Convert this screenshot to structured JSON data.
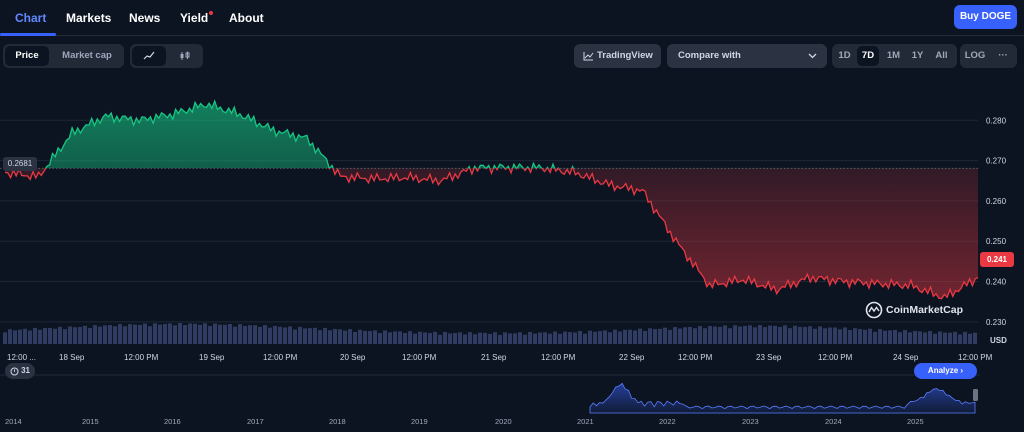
{
  "nav": {
    "tabs": [
      {
        "label": "Chart",
        "active": true
      },
      {
        "label": "Markets",
        "active": false
      },
      {
        "label": "News",
        "active": false
      },
      {
        "label": "Yield",
        "active": false
      },
      {
        "label": "About",
        "active": false
      }
    ],
    "buy_label": "Buy DOGE"
  },
  "toolbar": {
    "metric_tabs": [
      "Price",
      "Market cap"
    ],
    "metric_active": "Price",
    "chart_types": [
      "line-chart-icon",
      "candlestick-icon"
    ],
    "tradingview_label": "TradingView",
    "compare_placeholder": "Compare with",
    "ranges": [
      "1D",
      "7D",
      "1M",
      "1Y",
      "All",
      "LOG"
    ],
    "range_active": "7D",
    "more_label": "···"
  },
  "chart": {
    "reference_price": "0.2681",
    "current_price": "0.241",
    "currency_label": "USD",
    "watermark": "CoinMarketCap",
    "y_ticks": [
      "0.280",
      "0.270",
      "0.260",
      "0.250",
      "0.240",
      "0.230"
    ],
    "x_ticks": [
      "12:00 ...",
      "18 Sep",
      "12:00 PM",
      "19 Sep",
      "12:00 PM",
      "20 Sep",
      "12:00 PM",
      "21 Sep",
      "12:00 PM",
      "22 Sep",
      "12:00 PM",
      "23 Sep",
      "12:00 PM",
      "24 Sep",
      "12:00 PM"
    ],
    "range_years": [
      "2014",
      "2015",
      "2016",
      "2017",
      "2018",
      "2019",
      "2020",
      "2021",
      "2022",
      "2023",
      "2024",
      "2025"
    ],
    "badge_value": "31",
    "analyze_label": "Analyze",
    "colors": {
      "up": "#16c784",
      "down": "#ea3943",
      "accent": "#3861fb",
      "volume": "#3e4a7a"
    }
  },
  "chart_data": {
    "type": "line",
    "title": "",
    "xlabel": "",
    "ylabel": "USD",
    "ylim": [
      0.226,
      0.289
    ],
    "baseline": 0.2681,
    "x": [
      "17 Sep 09:00",
      "17 Sep 18:00",
      "18 Sep 00:00",
      "18 Sep 06:00",
      "18 Sep 12:00",
      "18 Sep 18:00",
      "19 Sep 00:00",
      "19 Sep 06:00",
      "19 Sep 12:00",
      "19 Sep 18:00",
      "20 Sep 00:00",
      "20 Sep 06:00",
      "20 Sep 12:00",
      "20 Sep 18:00",
      "21 Sep 00:00",
      "21 Sep 06:00",
      "21 Sep 12:00",
      "21 Sep 18:00",
      "22 Sep 00:00",
      "22 Sep 06:00",
      "22 Sep 09:00",
      "22 Sep 12:00",
      "22 Sep 18:00",
      "23 Sep 00:00",
      "23 Sep 06:00",
      "23 Sep 12:00",
      "23 Sep 18:00",
      "24 Sep 00:00",
      "24 Sep 06:00",
      "24 Sep 12:00"
    ],
    "series": [
      {
        "values": [
          0.2671,
          0.266,
          0.2768,
          0.281,
          0.28,
          0.2815,
          0.284,
          0.2815,
          0.2775,
          0.2755,
          0.266,
          0.2655,
          0.2658,
          0.265,
          0.2682,
          0.2683,
          0.2682,
          0.267,
          0.264,
          0.2625,
          0.25,
          0.239,
          0.2405,
          0.238,
          0.241,
          0.24,
          0.2395,
          0.239,
          0.236,
          0.241
        ]
      }
    ]
  }
}
